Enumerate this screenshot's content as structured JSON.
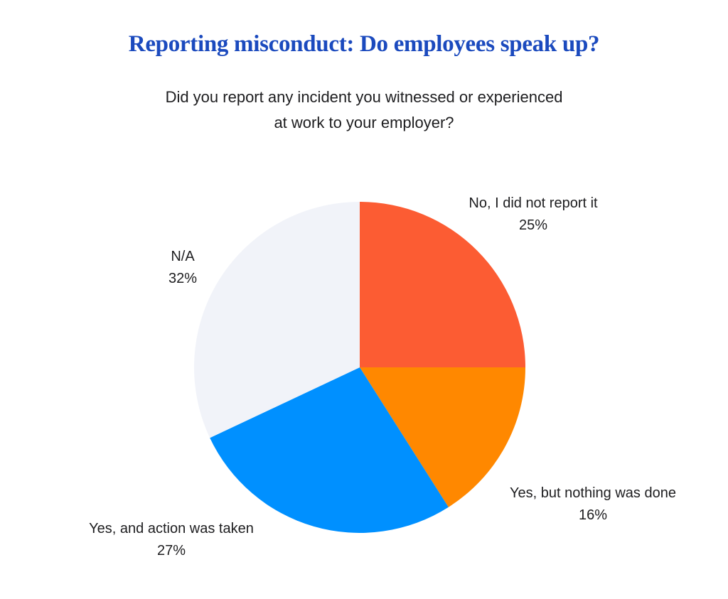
{
  "header": {
    "title": "Reporting misconduct: Do employees speak up?",
    "subtitle_line1": "Did you report any incident you witnessed or experienced",
    "subtitle_line2": "at work to your employer?"
  },
  "chart_data": {
    "type": "pie",
    "title": "Reporting misconduct: Do employees speak up?",
    "subtitle": "Did you report any incident you witnessed or experienced at work to your employer?",
    "categories": [
      "No, I did not report it",
      "Yes, but nothing was done",
      "Yes, and action was taken",
      "N/A"
    ],
    "values": [
      25,
      16,
      27,
      32
    ],
    "unit": "%",
    "colors": [
      "#fc5c33",
      "#ff8800",
      "#0090ff",
      "#f1f3f9"
    ],
    "start_angle_deg": 0,
    "direction": "clockwise",
    "legend_position": "none",
    "labels": [
      {
        "text": "No, I did not report it",
        "value": "25%"
      },
      {
        "text": "Yes, but nothing was done",
        "value": "16%"
      },
      {
        "text": "Yes, and action was taken",
        "value": "27%"
      },
      {
        "text": "N/A",
        "value": "32%"
      }
    ]
  },
  "colors": {
    "title": "#1b4abe",
    "text": "#1d1d1f",
    "background": "#ffffff",
    "slice_no_report": "#fc5c33",
    "slice_nothing_done": "#ff8800",
    "slice_action_taken": "#0090ff",
    "slice_na": "#f1f3f9"
  }
}
